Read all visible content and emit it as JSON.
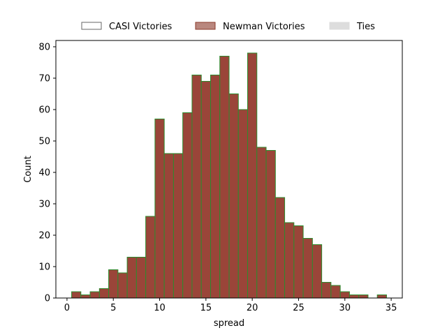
{
  "chart_data": {
    "type": "bar",
    "xlabel": "spread",
    "ylabel": "Count",
    "xlim": [
      -1.2,
      36.2
    ],
    "ylim": [
      0,
      82
    ],
    "xticks": [
      0,
      5,
      10,
      15,
      20,
      25,
      30,
      35
    ],
    "yticks": [
      0,
      10,
      20,
      30,
      40,
      50,
      60,
      70,
      80
    ],
    "grid": false,
    "legend_position": "top-center, above plot",
    "legend": [
      {
        "label": "CASI Victories",
        "fill": "#ffffff",
        "edge": "#666666"
      },
      {
        "label": "Newman Victories",
        "fill": "#b9877e",
        "edge": "#8b3a2a"
      },
      {
        "label": "Ties",
        "fill": "#dddddd",
        "edge": "#dddddd"
      }
    ],
    "bar_fill": "#9a4539",
    "bar_edge": "#2e8b2e",
    "bin_width": 1,
    "bins": [
      {
        "x0": 0.5,
        "x1": 1.5,
        "count": 2
      },
      {
        "x0": 1.5,
        "x1": 2.5,
        "count": 1
      },
      {
        "x0": 2.5,
        "x1": 3.5,
        "count": 2
      },
      {
        "x0": 3.5,
        "x1": 4.5,
        "count": 3
      },
      {
        "x0": 4.5,
        "x1": 5.5,
        "count": 9
      },
      {
        "x0": 5.5,
        "x1": 6.5,
        "count": 8
      },
      {
        "x0": 6.5,
        "x1": 7.5,
        "count": 13
      },
      {
        "x0": 7.5,
        "x1": 8.5,
        "count": 13
      },
      {
        "x0": 8.5,
        "x1": 9.5,
        "count": 26
      },
      {
        "x0": 9.5,
        "x1": 10.5,
        "count": 57
      },
      {
        "x0": 10.5,
        "x1": 11.5,
        "count": 46
      },
      {
        "x0": 11.5,
        "x1": 12.5,
        "count": 46
      },
      {
        "x0": 12.5,
        "x1": 13.5,
        "count": 59
      },
      {
        "x0": 13.5,
        "x1": 14.5,
        "count": 71
      },
      {
        "x0": 14.5,
        "x1": 15.5,
        "count": 69
      },
      {
        "x0": 15.5,
        "x1": 16.5,
        "count": 71
      },
      {
        "x0": 16.5,
        "x1": 17.5,
        "count": 77
      },
      {
        "x0": 17.5,
        "x1": 18.5,
        "count": 65
      },
      {
        "x0": 18.5,
        "x1": 19.5,
        "count": 60
      },
      {
        "x0": 19.5,
        "x1": 20.5,
        "count": 78
      },
      {
        "x0": 20.5,
        "x1": 21.5,
        "count": 48
      },
      {
        "x0": 21.5,
        "x1": 22.5,
        "count": 47
      },
      {
        "x0": 22.5,
        "x1": 23.5,
        "count": 32
      },
      {
        "x0": 23.5,
        "x1": 24.5,
        "count": 24
      },
      {
        "x0": 24.5,
        "x1": 25.5,
        "count": 23
      },
      {
        "x0": 25.5,
        "x1": 26.5,
        "count": 19
      },
      {
        "x0": 26.5,
        "x1": 27.5,
        "count": 17
      },
      {
        "x0": 27.5,
        "x1": 28.5,
        "count": 5
      },
      {
        "x0": 28.5,
        "x1": 29.5,
        "count": 4
      },
      {
        "x0": 29.5,
        "x1": 30.5,
        "count": 2
      },
      {
        "x0": 30.5,
        "x1": 31.5,
        "count": 1
      },
      {
        "x0": 31.5,
        "x1": 32.5,
        "count": 1
      },
      {
        "x0": 32.5,
        "x1": 33.5,
        "count": 0
      },
      {
        "x0": 33.5,
        "x1": 34.5,
        "count": 1
      }
    ]
  }
}
